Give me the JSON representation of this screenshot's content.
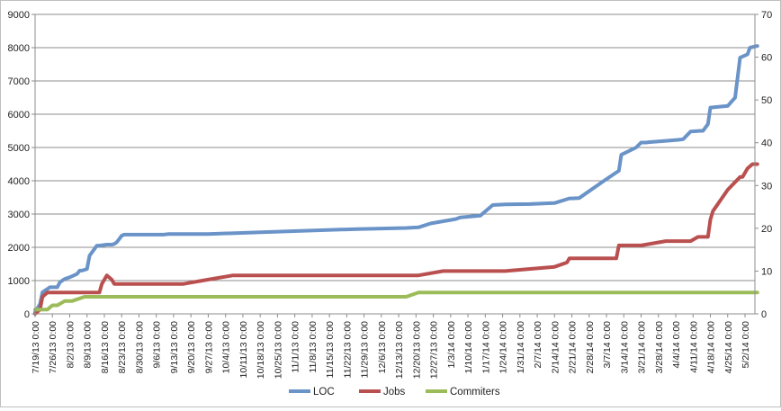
{
  "chart_data": {
    "type": "line",
    "title": "",
    "xlabel": "",
    "ylabel": "",
    "ylim": [
      0,
      9000
    ],
    "y_ticks": [
      0,
      1000,
      2000,
      3000,
      4000,
      5000,
      6000,
      7000,
      8000,
      9000
    ],
    "y2lim": [
      0,
      70
    ],
    "y2_ticks": [
      0,
      10,
      20,
      30,
      40,
      50,
      60,
      70
    ],
    "grid": "horizontal major gridlines",
    "legend": "bottom",
    "x_tick_labels": [
      "7/19/13 0:00",
      "7/26/13 0:00",
      "8/2/13 0:00",
      "8/9/13 0:00",
      "8/16/13 0:00",
      "8/23/13 0:00",
      "8/30/13 0:00",
      "9/6/13 0:00",
      "9/13/13 0:00",
      "9/20/13 0:00",
      "9/27/13 0:00",
      "10/4/13 0:00",
      "10/11/13 0:00",
      "10/18/13 0:00",
      "10/25/13 0:00",
      "11/1/13 0:00",
      "11/8/13 0:00",
      "11/15/13 0:00",
      "11/22/13 0:00",
      "11/29/13 0:00",
      "12/6/13 0:00",
      "12/13/13 0:00",
      "12/20/13 0:00",
      "12/27/13 0:00",
      "1/3/14 0:00",
      "1/10/14 0:00",
      "1/17/14 0:00",
      "1/24/14 0:00",
      "1/31/14 0:00",
      "2/7/14 0:00",
      "2/14/14 0:00",
      "2/21/14 0:00",
      "2/28/14 0:00",
      "3/7/14 0:00",
      "3/14/14 0:00",
      "3/21/14 0:00",
      "3/28/14 0:00",
      "4/4/14 0:00",
      "4/11/14 0:00",
      "4/18/14 0:00",
      "4/25/14 0:00",
      "5/2/14 0:00"
    ],
    "x_days_span": 291,
    "series": [
      {
        "name": "LOC",
        "axis": "left",
        "color": "#6a93c8",
        "x": [
          0,
          2,
          3,
          5,
          6,
          9,
          10,
          11,
          12,
          14,
          17,
          18,
          19,
          21,
          22,
          25,
          26,
          28,
          29,
          31,
          32,
          33,
          34,
          35,
          36,
          42,
          44,
          46,
          49,
          52,
          54,
          70,
          90,
          110,
          130,
          150,
          155,
          160,
          170,
          172,
          180,
          185,
          190,
          200,
          210,
          216,
          217,
          220,
          230,
          236,
          237,
          243,
          245,
          246,
          247,
          248,
          255,
          260,
          262,
          265,
          269,
          270,
          271,
          272,
          273,
          280,
          283,
          285,
          288,
          289,
          292
        ],
        "y": [
          50,
          300,
          650,
          750,
          800,
          800,
          950,
          1000,
          1050,
          1100,
          1200,
          1300,
          1300,
          1350,
          1750,
          2050,
          2050,
          2070,
          2080,
          2080,
          2100,
          2150,
          2250,
          2350,
          2380,
          2380,
          2380,
          2380,
          2380,
          2380,
          2400,
          2400,
          2450,
          2500,
          2550,
          2580,
          2600,
          2720,
          2850,
          2900,
          2950,
          3270,
          3290,
          3300,
          3330,
          3470,
          3470,
          3480,
          4000,
          4300,
          4780,
          5000,
          5150,
          5150,
          5150,
          5160,
          5200,
          5230,
          5250,
          5480,
          5500,
          5500,
          5600,
          5700,
          6200,
          6250,
          6500,
          7700,
          7800,
          8000,
          8050
        ]
      },
      {
        "name": "Jobs",
        "axis": "right",
        "color": "#b9504f",
        "x": [
          0,
          2,
          3,
          5,
          6,
          9,
          10,
          11,
          15,
          20,
          25,
          26,
          27,
          28,
          29,
          31,
          32,
          33,
          34,
          35,
          36,
          40,
          50,
          60,
          70,
          80,
          85,
          90,
          110,
          120,
          140,
          145,
          155,
          165,
          170,
          180,
          190,
          210,
          215,
          216,
          217,
          220,
          230,
          232,
          234,
          235,
          236,
          238,
          240,
          245,
          255,
          260,
          262,
          263,
          265,
          268,
          269,
          272,
          273,
          274,
          280,
          285,
          286,
          288,
          290,
          292
        ],
        "y": [
          0,
          1,
          4,
          5,
          5,
          5,
          5,
          5,
          5,
          5,
          5,
          5,
          7,
          8,
          9,
          8,
          7,
          7,
          7,
          7,
          7,
          7,
          7,
          7,
          8,
          9,
          9,
          9,
          9,
          9,
          9,
          9,
          9,
          10,
          10,
          10,
          10,
          11,
          12,
          13,
          13,
          13,
          13,
          13,
          13,
          13,
          16,
          16,
          16,
          16,
          17,
          17,
          17,
          17,
          17,
          18,
          18,
          18,
          22,
          24,
          29,
          32,
          32,
          34,
          35,
          35
        ]
      },
      {
        "name": "Commiters",
        "axis": "right",
        "color": "#9cbb59",
        "x": [
          0,
          3,
          5,
          7,
          9,
          12,
          15,
          20,
          40,
          60,
          80,
          85,
          90,
          100,
          110,
          120,
          130,
          140,
          150,
          155,
          165,
          175,
          185,
          195,
          205,
          215,
          225,
          235,
          245,
          255,
          265,
          272,
          278,
          285,
          290,
          292
        ],
        "y": [
          1,
          1,
          1,
          2,
          2,
          3,
          3,
          4,
          4,
          4,
          4,
          4,
          4,
          4,
          4,
          4,
          4,
          4,
          4,
          5,
          5,
          5,
          5,
          5,
          5,
          5,
          5,
          5,
          5,
          5,
          5,
          5,
          5,
          5,
          5,
          5
        ]
      }
    ]
  }
}
